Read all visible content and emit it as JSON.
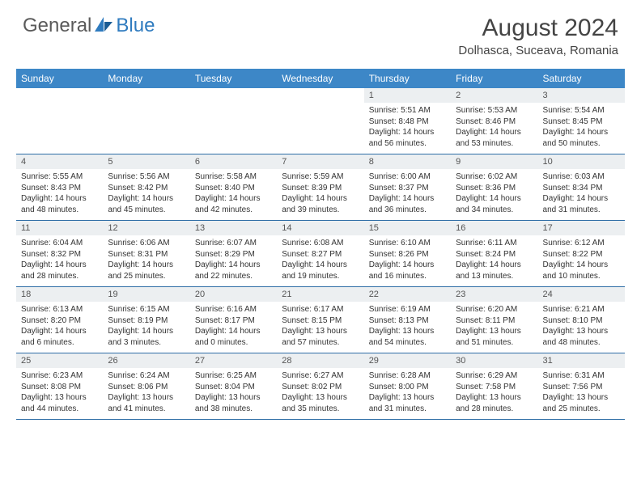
{
  "brand": {
    "general": "General",
    "blue": "Blue"
  },
  "title": "August 2024",
  "location": "Dolhasca, Suceava, Romania",
  "colors": {
    "header_bg": "#3d87c7",
    "header_text": "#ffffff",
    "daynum_bg": "#eceff1",
    "row_border": "#2f6ea6",
    "logo_blue": "#2f7bbf",
    "logo_gray": "#5a5a5a"
  },
  "weekdays": [
    "Sunday",
    "Monday",
    "Tuesday",
    "Wednesday",
    "Thursday",
    "Friday",
    "Saturday"
  ],
  "first_weekday_index": 4,
  "days": [
    {
      "n": 1,
      "sr": "5:51 AM",
      "ss": "8:48 PM",
      "dl": "14 hours and 56 minutes."
    },
    {
      "n": 2,
      "sr": "5:53 AM",
      "ss": "8:46 PM",
      "dl": "14 hours and 53 minutes."
    },
    {
      "n": 3,
      "sr": "5:54 AM",
      "ss": "8:45 PM",
      "dl": "14 hours and 50 minutes."
    },
    {
      "n": 4,
      "sr": "5:55 AM",
      "ss": "8:43 PM",
      "dl": "14 hours and 48 minutes."
    },
    {
      "n": 5,
      "sr": "5:56 AM",
      "ss": "8:42 PM",
      "dl": "14 hours and 45 minutes."
    },
    {
      "n": 6,
      "sr": "5:58 AM",
      "ss": "8:40 PM",
      "dl": "14 hours and 42 minutes."
    },
    {
      "n": 7,
      "sr": "5:59 AM",
      "ss": "8:39 PM",
      "dl": "14 hours and 39 minutes."
    },
    {
      "n": 8,
      "sr": "6:00 AM",
      "ss": "8:37 PM",
      "dl": "14 hours and 36 minutes."
    },
    {
      "n": 9,
      "sr": "6:02 AM",
      "ss": "8:36 PM",
      "dl": "14 hours and 34 minutes."
    },
    {
      "n": 10,
      "sr": "6:03 AM",
      "ss": "8:34 PM",
      "dl": "14 hours and 31 minutes."
    },
    {
      "n": 11,
      "sr": "6:04 AM",
      "ss": "8:32 PM",
      "dl": "14 hours and 28 minutes."
    },
    {
      "n": 12,
      "sr": "6:06 AM",
      "ss": "8:31 PM",
      "dl": "14 hours and 25 minutes."
    },
    {
      "n": 13,
      "sr": "6:07 AM",
      "ss": "8:29 PM",
      "dl": "14 hours and 22 minutes."
    },
    {
      "n": 14,
      "sr": "6:08 AM",
      "ss": "8:27 PM",
      "dl": "14 hours and 19 minutes."
    },
    {
      "n": 15,
      "sr": "6:10 AM",
      "ss": "8:26 PM",
      "dl": "14 hours and 16 minutes."
    },
    {
      "n": 16,
      "sr": "6:11 AM",
      "ss": "8:24 PM",
      "dl": "14 hours and 13 minutes."
    },
    {
      "n": 17,
      "sr": "6:12 AM",
      "ss": "8:22 PM",
      "dl": "14 hours and 10 minutes."
    },
    {
      "n": 18,
      "sr": "6:13 AM",
      "ss": "8:20 PM",
      "dl": "14 hours and 6 minutes."
    },
    {
      "n": 19,
      "sr": "6:15 AM",
      "ss": "8:19 PM",
      "dl": "14 hours and 3 minutes."
    },
    {
      "n": 20,
      "sr": "6:16 AM",
      "ss": "8:17 PM",
      "dl": "14 hours and 0 minutes."
    },
    {
      "n": 21,
      "sr": "6:17 AM",
      "ss": "8:15 PM",
      "dl": "13 hours and 57 minutes."
    },
    {
      "n": 22,
      "sr": "6:19 AM",
      "ss": "8:13 PM",
      "dl": "13 hours and 54 minutes."
    },
    {
      "n": 23,
      "sr": "6:20 AM",
      "ss": "8:11 PM",
      "dl": "13 hours and 51 minutes."
    },
    {
      "n": 24,
      "sr": "6:21 AM",
      "ss": "8:10 PM",
      "dl": "13 hours and 48 minutes."
    },
    {
      "n": 25,
      "sr": "6:23 AM",
      "ss": "8:08 PM",
      "dl": "13 hours and 44 minutes."
    },
    {
      "n": 26,
      "sr": "6:24 AM",
      "ss": "8:06 PM",
      "dl": "13 hours and 41 minutes."
    },
    {
      "n": 27,
      "sr": "6:25 AM",
      "ss": "8:04 PM",
      "dl": "13 hours and 38 minutes."
    },
    {
      "n": 28,
      "sr": "6:27 AM",
      "ss": "8:02 PM",
      "dl": "13 hours and 35 minutes."
    },
    {
      "n": 29,
      "sr": "6:28 AM",
      "ss": "8:00 PM",
      "dl": "13 hours and 31 minutes."
    },
    {
      "n": 30,
      "sr": "6:29 AM",
      "ss": "7:58 PM",
      "dl": "13 hours and 28 minutes."
    },
    {
      "n": 31,
      "sr": "6:31 AM",
      "ss": "7:56 PM",
      "dl": "13 hours and 25 minutes."
    }
  ],
  "labels": {
    "sunrise": "Sunrise:",
    "sunset": "Sunset:",
    "daylight": "Daylight:"
  }
}
